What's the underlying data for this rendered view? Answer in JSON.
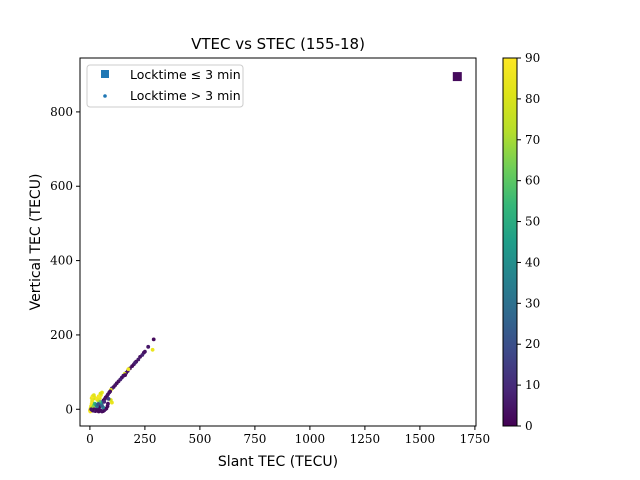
{
  "chart_data": {
    "type": "scatter",
    "title": "VTEC vs STEC (155-18)",
    "xlabel": "Slant TEC (TECU)",
    "ylabel": "Vertical TEC (TECU)",
    "xlim": [
      -45,
      1755
    ],
    "ylim": [
      -45,
      945
    ],
    "xticks": [
      0,
      250,
      500,
      750,
      1000,
      1250,
      1500,
      1750
    ],
    "yticks": [
      0,
      200,
      400,
      600,
      800
    ],
    "legend": {
      "placement": "upper-left",
      "entries": [
        {
          "label": "Locktime ≤ 3 min",
          "marker": "square",
          "color": "#1f77b4"
        },
        {
          "label": "Locktime > 3 min",
          "marker": "dot",
          "color": "#1f77b4"
        }
      ]
    },
    "colorbar": {
      "colormap": "viridis",
      "range": [
        0,
        90
      ],
      "ticks": [
        0,
        10,
        20,
        30,
        40,
        50,
        60,
        70,
        80,
        90
      ]
    },
    "series": [
      {
        "marker": "square",
        "points": [
          {
            "x": 1670,
            "y": 895,
            "c": 2
          }
        ]
      },
      {
        "marker": "dot",
        "points": [
          {
            "x": 290,
            "y": 188,
            "c": 2
          },
          {
            "x": 285,
            "y": 160,
            "c": 85
          },
          {
            "x": 265,
            "y": 168,
            "c": 5
          },
          {
            "x": 245,
            "y": 152,
            "c": 3
          },
          {
            "x": 238,
            "y": 146,
            "c": 8
          },
          {
            "x": 228,
            "y": 141,
            "c": 4
          },
          {
            "x": 220,
            "y": 134,
            "c": 6
          },
          {
            "x": 210,
            "y": 128,
            "c": 3
          },
          {
            "x": 200,
            "y": 121,
            "c": 5
          },
          {
            "x": 192,
            "y": 116,
            "c": 2
          },
          {
            "x": 182,
            "y": 110,
            "c": 4
          },
          {
            "x": 172,
            "y": 103,
            "c": 6
          },
          {
            "x": 165,
            "y": 98,
            "c": 3
          },
          {
            "x": 158,
            "y": 95,
            "c": 80
          },
          {
            "x": 152,
            "y": 90,
            "c": 5
          },
          {
            "x": 145,
            "y": 85,
            "c": 3
          },
          {
            "x": 138,
            "y": 80,
            "c": 8
          },
          {
            "x": 130,
            "y": 75,
            "c": 4
          },
          {
            "x": 122,
            "y": 70,
            "c": 2
          },
          {
            "x": 115,
            "y": 65,
            "c": 5
          },
          {
            "x": 108,
            "y": 60,
            "c": 3
          },
          {
            "x": 100,
            "y": 56,
            "c": 6
          },
          {
            "x": 95,
            "y": 52,
            "c": 85
          },
          {
            "x": 92,
            "y": 48,
            "c": 2
          },
          {
            "x": 88,
            "y": 45,
            "c": 4
          },
          {
            "x": 82,
            "y": 40,
            "c": 3
          },
          {
            "x": 78,
            "y": 36,
            "c": 5
          },
          {
            "x": 72,
            "y": 32,
            "c": 2
          },
          {
            "x": 68,
            "y": 28,
            "c": 4
          },
          {
            "x": 62,
            "y": 24,
            "c": 3
          },
          {
            "x": 58,
            "y": 20,
            "c": 6
          },
          {
            "x": 52,
            "y": 16,
            "c": 2
          },
          {
            "x": 48,
            "y": 12,
            "c": 5
          },
          {
            "x": 45,
            "y": 8,
            "c": 3
          },
          {
            "x": 40,
            "y": 5,
            "c": 2
          },
          {
            "x": 35,
            "y": 2,
            "c": 4
          },
          {
            "x": 30,
            "y": -2,
            "c": 3
          },
          {
            "x": 25,
            "y": -5,
            "c": 2
          },
          {
            "x": 75,
            "y": 2,
            "c": 3
          },
          {
            "x": 80,
            "y": 8,
            "c": 2
          },
          {
            "x": 82,
            "y": 15,
            "c": 4
          },
          {
            "x": 70,
            "y": 0,
            "c": 2
          },
          {
            "x": 65,
            "y": -3,
            "c": 5
          },
          {
            "x": 60,
            "y": -5,
            "c": 3
          },
          {
            "x": 55,
            "y": -6,
            "c": 2
          },
          {
            "x": 50,
            "y": -4,
            "c": 4
          },
          {
            "x": 45,
            "y": -2,
            "c": 3
          },
          {
            "x": 40,
            "y": -6,
            "c": 2
          },
          {
            "x": 60,
            "y": 5,
            "c": 35
          },
          {
            "x": 55,
            "y": 10,
            "c": 25
          },
          {
            "x": 50,
            "y": 18,
            "c": 40
          },
          {
            "x": 42,
            "y": 22,
            "c": 60
          },
          {
            "x": 35,
            "y": 25,
            "c": 75
          },
          {
            "x": 30,
            "y": 28,
            "c": 85
          },
          {
            "x": 25,
            "y": 30,
            "c": 88
          },
          {
            "x": 20,
            "y": 32,
            "c": 85
          },
          {
            "x": 15,
            "y": 28,
            "c": 80
          },
          {
            "x": 10,
            "y": 22,
            "c": 85
          },
          {
            "x": 8,
            "y": 15,
            "c": 88
          },
          {
            "x": 5,
            "y": 8,
            "c": 85
          },
          {
            "x": 3,
            "y": 2,
            "c": 80
          },
          {
            "x": 0,
            "y": -3,
            "c": 85
          },
          {
            "x": 2,
            "y": -6,
            "c": 88
          },
          {
            "x": 12,
            "y": 5,
            "c": 70
          },
          {
            "x": 18,
            "y": 10,
            "c": 65
          },
          {
            "x": 22,
            "y": 15,
            "c": 55
          },
          {
            "x": 28,
            "y": 12,
            "c": 45
          },
          {
            "x": 32,
            "y": 8,
            "c": 30
          },
          {
            "x": 38,
            "y": 14,
            "c": 20
          },
          {
            "x": 45,
            "y": 30,
            "c": 85
          },
          {
            "x": 50,
            "y": 38,
            "c": 88
          },
          {
            "x": 55,
            "y": 45,
            "c": 85
          },
          {
            "x": 48,
            "y": 42,
            "c": 80
          },
          {
            "x": 40,
            "y": 35,
            "c": 88
          },
          {
            "x": 100,
            "y": 18,
            "c": 85
          },
          {
            "x": 95,
            "y": 25,
            "c": 80
          },
          {
            "x": 85,
            "y": 28,
            "c": 15
          },
          {
            "x": 65,
            "y": 20,
            "c": 10
          },
          {
            "x": 20,
            "y": 0,
            "c": 3
          },
          {
            "x": 15,
            "y": -4,
            "c": 5
          },
          {
            "x": 10,
            "y": -2,
            "c": 2
          },
          {
            "x": 6,
            "y": 0,
            "c": 4
          },
          {
            "x": 8,
            "y": 30,
            "c": 85
          },
          {
            "x": 12,
            "y": 35,
            "c": 88
          },
          {
            "x": 18,
            "y": 38,
            "c": 82
          },
          {
            "x": 160,
            "y": 92,
            "c": 3
          },
          {
            "x": 175,
            "y": 108,
            "c": 85
          },
          {
            "x": 205,
            "y": 125,
            "c": 7
          },
          {
            "x": 250,
            "y": 155,
            "c": 4
          }
        ]
      }
    ]
  }
}
